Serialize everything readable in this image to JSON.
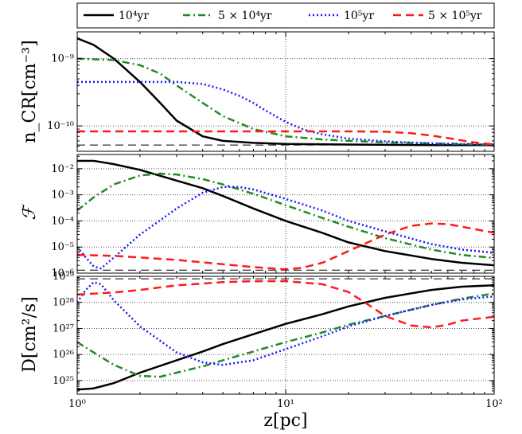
{
  "figure": {
    "xlabel": "z[pc]"
  },
  "legend": [
    {
      "name": "10⁴yr",
      "color": "#000000",
      "dash": "solid"
    },
    {
      "name": "5 × 10⁴yr",
      "color": "#228b22",
      "dash": "dashdot"
    },
    {
      "name": "10⁵yr",
      "color": "#1a1aff",
      "dash": "dotted"
    },
    {
      "name": "5 × 10⁵yr",
      "color": "#ff1a1a",
      "dash": "dashed"
    }
  ],
  "chart_data": [
    {
      "type": "line",
      "ylabel": "n_CR[cm⁻³]",
      "xscale": "log",
      "yscale": "log",
      "xlim": [
        1,
        100
      ],
      "ylim": [
        4.2e-11,
        2.5e-09
      ],
      "xticks": [
        {
          "v": 1,
          "l": "10⁰"
        },
        {
          "v": 10,
          "l": "10¹"
        },
        {
          "v": 100,
          "l": "10²"
        }
      ],
      "yticks": [
        {
          "v": 1e-10,
          "l": "10⁻¹⁰"
        },
        {
          "v": 1e-09,
          "l": "10⁻⁹"
        }
      ],
      "grid": true,
      "ref_line": {
        "y": 5.2e-11,
        "color": "#000000",
        "dash": "dashed"
      },
      "series": [
        {
          "name": "10⁴yr",
          "x": [
            1,
            1.2,
            1.5,
            2,
            2.5,
            3,
            4,
            5,
            7,
            10,
            20,
            50,
            100
          ],
          "y": [
            2e-09,
            1.6e-09,
            1e-09,
            4.5e-10,
            2.2e-10,
            1.2e-10,
            7e-11,
            6e-11,
            5.6e-11,
            5.4e-11,
            5.3e-11,
            5.2e-11,
            5.2e-11
          ]
        },
        {
          "name": "5 × 10⁴yr",
          "x": [
            1,
            1.5,
            2,
            2.5,
            3,
            4,
            5,
            7,
            10,
            15,
            20,
            30,
            50,
            100
          ],
          "y": [
            1e-09,
            9.5e-10,
            8e-10,
            6e-10,
            4e-10,
            2.2e-10,
            1.4e-10,
            9e-11,
            7e-11,
            6.3e-11,
            6e-11,
            5.7e-11,
            5.5e-11,
            5.3e-11
          ]
        },
        {
          "name": "10⁵yr",
          "x": [
            1,
            2,
            3,
            4,
            5,
            6,
            7,
            8,
            10,
            12,
            15,
            20,
            30,
            50,
            100
          ],
          "y": [
            4.5e-10,
            4.5e-10,
            4.5e-10,
            4.2e-10,
            3.5e-10,
            2.8e-10,
            2.2e-10,
            1.7e-10,
            1.15e-10,
            9e-11,
            7.5e-11,
            6.5e-11,
            5.9e-11,
            5.5e-11,
            5.3e-11
          ]
        },
        {
          "name": "5 × 10⁵yr",
          "x": [
            1,
            5,
            10,
            15,
            20,
            30,
            40,
            50,
            60,
            70,
            80,
            100
          ],
          "y": [
            8.3e-11,
            8.3e-11,
            8.3e-11,
            8.3e-11,
            8.3e-11,
            8.2e-11,
            7.8e-11,
            7.2e-11,
            6.6e-11,
            6.1e-11,
            5.7e-11,
            5.3e-11
          ]
        }
      ]
    },
    {
      "type": "line",
      "ylabel": "ℱ",
      "xscale": "log",
      "yscale": "log",
      "xlim": [
        1,
        100
      ],
      "ylim": [
        1e-06,
        0.035
      ],
      "xticks": [
        {
          "v": 1,
          "l": "10⁰"
        },
        {
          "v": 10,
          "l": "10¹"
        },
        {
          "v": 100,
          "l": "10²"
        }
      ],
      "yticks": [
        {
          "v": 1e-06,
          "l": "10⁻⁶"
        },
        {
          "v": 1e-05,
          "l": "10⁻⁵"
        },
        {
          "v": 0.0001,
          "l": "10⁻⁴"
        },
        {
          "v": 0.001,
          "l": "10⁻³"
        },
        {
          "v": 0.01,
          "l": "10⁻²"
        }
      ],
      "grid": true,
      "ref_line": {
        "y": 1.3e-06,
        "color": "#000000",
        "dash": "dashed"
      },
      "series": [
        {
          "name": "10⁴yr",
          "x": [
            1,
            1.2,
            1.5,
            2,
            3,
            4,
            5,
            7,
            10,
            15,
            20,
            30,
            50,
            70,
            100
          ],
          "y": [
            0.02,
            0.02,
            0.015,
            0.009,
            0.0035,
            0.0018,
            0.0009,
            0.0003,
            0.0001,
            3.5e-05,
            1.5e-05,
            7e-06,
            3.5e-06,
            2.5e-06,
            2e-06
          ]
        },
        {
          "name": "5 × 10⁴yr",
          "x": [
            1,
            1.2,
            1.5,
            2,
            2.5,
            3,
            4,
            5,
            7,
            10,
            15,
            20,
            30,
            50,
            70,
            100
          ],
          "y": [
            0.00025,
            0.0008,
            0.0025,
            0.0055,
            0.0065,
            0.006,
            0.004,
            0.0025,
            0.0011,
            0.0004,
            0.00013,
            6e-05,
            2.2e-05,
            8e-06,
            5e-06,
            3.8e-06
          ]
        },
        {
          "name": "10⁵yr",
          "x": [
            1,
            1.1,
            1.2,
            1.3,
            1.5,
            2,
            3,
            4,
            5,
            6,
            7,
            10,
            15,
            20,
            30,
            50,
            70,
            100
          ],
          "y": [
            1e-05,
            4e-06,
            1.8e-06,
            1.5e-06,
            4e-06,
            3e-05,
            0.0003,
            0.0012,
            0.002,
            0.002,
            0.0016,
            0.0007,
            0.00025,
            0.0001,
            4e-05,
            1.3e-05,
            8e-06,
            6e-06
          ]
        },
        {
          "name": "5 × 10⁵yr",
          "x": [
            1,
            1.5,
            2,
            3,
            5,
            7,
            10,
            12,
            15,
            20,
            30,
            40,
            50,
            60,
            70,
            100
          ],
          "y": [
            5e-06,
            4.6e-06,
            4e-06,
            3.2e-06,
            2.2e-06,
            1.7e-06,
            1.4e-06,
            1.6e-06,
            2.5e-06,
            7e-06,
            3e-05,
            6.5e-05,
            8e-05,
            7.5e-05,
            6e-05,
            3.5e-05
          ]
        }
      ]
    },
    {
      "type": "line",
      "ylabel": "D[cm²/s]",
      "xscale": "log",
      "yscale": "log",
      "xlim": [
        1,
        100
      ],
      "ylim": [
        3e+24,
        1e+29
      ],
      "xticks": [
        {
          "v": 1,
          "l": "10⁰"
        },
        {
          "v": 10,
          "l": "10¹"
        },
        {
          "v": 100,
          "l": "10²"
        }
      ],
      "yticks": [
        {
          "v": 1e+25,
          "l": "10²⁵"
        },
        {
          "v": 1e+26,
          "l": "10²⁶"
        },
        {
          "v": 1e+27,
          "l": "10²⁷"
        },
        {
          "v": 1e+28,
          "l": "10²⁸"
        },
        {
          "v": 1e+29,
          "l": "10²⁹"
        }
      ],
      "grid": true,
      "ref_line": {
        "y": 8e+28,
        "color": "#000000",
        "dash": "dashed"
      },
      "series": [
        {
          "name": "10⁴yr",
          "x": [
            1,
            1.2,
            1.5,
            2,
            3,
            4,
            5,
            7,
            10,
            15,
            20,
            30,
            50,
            70,
            100
          ],
          "y": [
            4.5e+24,
            5e+24,
            8e+24,
            2e+25,
            6e+25,
            1.3e+26,
            2.5e+26,
            6e+26,
            1.5e+27,
            3.5e+27,
            7e+27,
            1.5e+28,
            3e+28,
            4e+28,
            4.5e+28
          ]
        },
        {
          "name": "5 × 10⁴yr",
          "x": [
            1,
            1.2,
            1.5,
            2,
            2.5,
            3,
            4,
            5,
            7,
            10,
            15,
            20,
            30,
            50,
            70,
            100
          ],
          "y": [
            3e+26,
            1.2e+26,
            4e+25,
            1.5e+25,
            1.4e+25,
            2e+25,
            3.5e+25,
            6e+25,
            1.3e+26,
            3e+26,
            7e+26,
            1.4e+27,
            3e+27,
            8e+27,
            1.4e+28,
            2.2e+28
          ]
        },
        {
          "name": "10⁵yr",
          "x": [
            1,
            1.1,
            1.2,
            1.3,
            1.5,
            2,
            3,
            4,
            5,
            7,
            10,
            15,
            20,
            30,
            50,
            70,
            100
          ],
          "y": [
            1e+28,
            3e+28,
            6e+28,
            5e+28,
            1.2e+28,
            1.2e+27,
            1.2e+26,
            5e+25,
            4e+25,
            6e+25,
            1.6e+26,
            5e+26,
            1.2e+27,
            3e+27,
            8e+27,
            1.3e+28,
            1.7e+28
          ]
        },
        {
          "name": "5 × 10⁵yr",
          "x": [
            1,
            1.5,
            2,
            3,
            5,
            7,
            10,
            15,
            20,
            25,
            30,
            40,
            50,
            60,
            70,
            100
          ],
          "y": [
            2e+28,
            2.4e+28,
            3e+28,
            4.5e+28,
            6e+28,
            6.5e+28,
            6.5e+28,
            5e+28,
            2.5e+28,
            8e+27,
            3e+27,
            1.3e+27,
            1.1e+27,
            1.4e+27,
            2e+27,
            2.8e+27
          ]
        }
      ]
    }
  ]
}
